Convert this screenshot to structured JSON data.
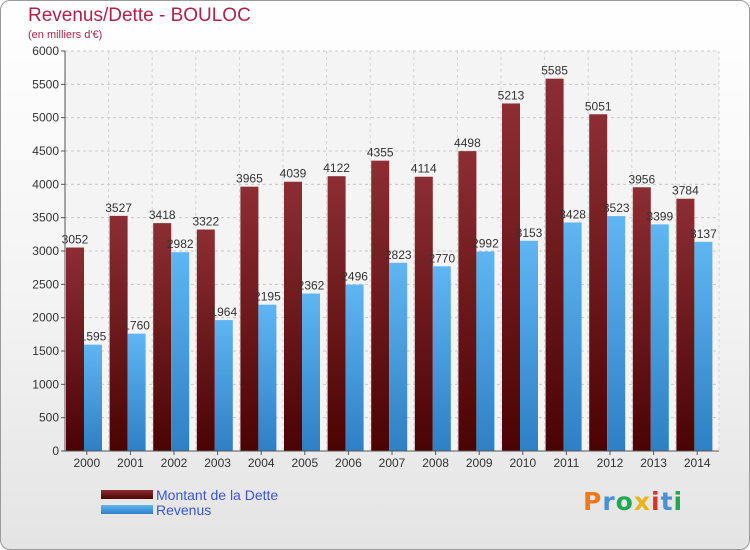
{
  "title": "Revenus/Dette - BOULOC",
  "subtitle": "(en milliers d'€)",
  "chart_data": {
    "type": "bar",
    "categories": [
      "2000",
      "2001",
      "2002",
      "2003",
      "2004",
      "2005",
      "2006",
      "2007",
      "2008",
      "2009",
      "2010",
      "2011",
      "2012",
      "2013",
      "2014"
    ],
    "series": [
      {
        "name": "Montant de la Dette",
        "values": [
          3052,
          3527,
          3418,
          3322,
          3965,
          4039,
          4122,
          4355,
          4114,
          4498,
          5213,
          5585,
          5051,
          3956,
          3784
        ]
      },
      {
        "name": "Revenus",
        "values": [
          1595,
          1760,
          2982,
          1964,
          2195,
          2362,
          2496,
          2823,
          2770,
          2992,
          3153,
          3428,
          3523,
          3399,
          3137
        ]
      }
    ],
    "ylim": [
      0,
      6000
    ],
    "yticks": [
      0,
      500,
      1000,
      1500,
      2000,
      2500,
      3000,
      3500,
      4000,
      4500,
      5000,
      5500,
      6000
    ],
    "grid": true,
    "legend_position": "bottom-left",
    "colors": {
      "dette": "#6e1515",
      "revenus": "#4fa7e8"
    }
  },
  "legend": {
    "dette_label": "Montant de la Dette",
    "revenus_label": "Revenus"
  },
  "logo": {
    "text": "Proxiti",
    "colors": [
      "#f07a1a",
      "#4a90d6",
      "#1fa84e",
      "#e8b51a",
      "#d9342b",
      "#4a90d6",
      "#1fa84e"
    ]
  }
}
